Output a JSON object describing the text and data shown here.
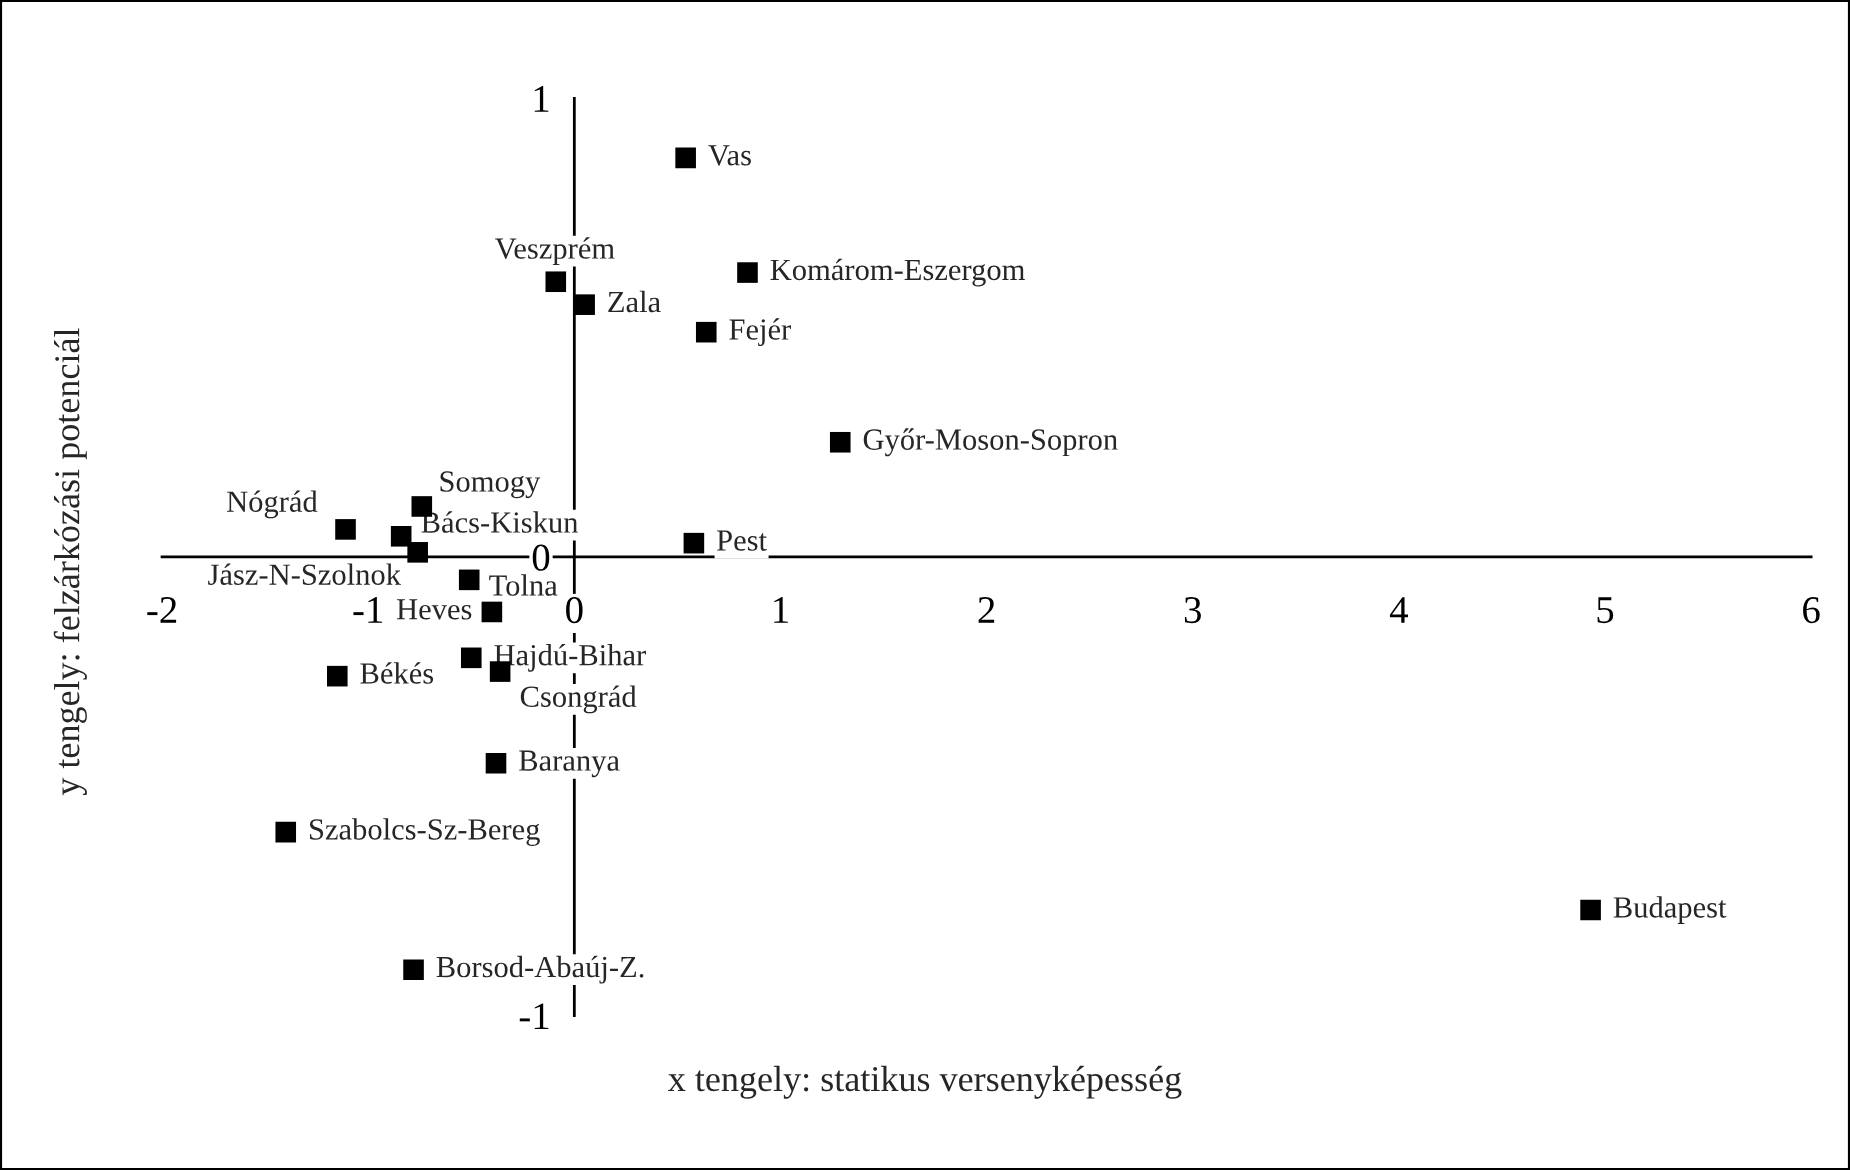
{
  "chart_data": {
    "type": "scatter",
    "xlabel": "x tengely: statikus versenyképesség",
    "ylabel": "y tengely: felzárkózási potenciál",
    "xlim": [
      -2,
      6
    ],
    "ylim": [
      -1,
      1
    ],
    "xticks": [
      -2,
      -1,
      0,
      1,
      2,
      3,
      4,
      5,
      6
    ],
    "yticks": [
      -1,
      0,
      1
    ],
    "grid": false,
    "marker": "square",
    "series": [
      {
        "color": "#000000",
        "x": [
          0.54,
          -0.09,
          0.05,
          0.84,
          0.64,
          1.29,
          -0.74,
          -1.11,
          -0.84,
          -0.76,
          0.58,
          -0.51,
          -0.4,
          -0.5,
          -0.36,
          -1.15,
          -0.38,
          -1.4,
          -0.78,
          4.93
        ],
        "values": [
          0.87,
          0.6,
          0.55,
          0.62,
          0.49,
          0.25,
          0.11,
          0.06,
          0.045,
          0.01,
          0.03,
          -0.05,
          -0.12,
          -0.22,
          -0.25,
          -0.26,
          -0.45,
          -0.6,
          -0.9,
          -0.77
        ]
      }
    ],
    "annotations": [
      {
        "text": "Vas",
        "x": 0.54,
        "y": 0.87
      },
      {
        "text": "Veszprém",
        "x": -0.09,
        "y": 0.6
      },
      {
        "text": "Zala",
        "x": 0.05,
        "y": 0.55
      },
      {
        "text": "Komárom-Eszergom",
        "x": 0.84,
        "y": 0.62
      },
      {
        "text": "Fejér",
        "x": 0.64,
        "y": 0.49
      },
      {
        "text": "Győr-Moson-Sopron",
        "x": 1.29,
        "y": 0.25
      },
      {
        "text": "Somogy",
        "x": -0.74,
        "y": 0.11
      },
      {
        "text": "Nógrád",
        "x": -1.11,
        "y": 0.06
      },
      {
        "text": "Bács-Kiskun",
        "x": -0.84,
        "y": 0.045
      },
      {
        "text": "Jász-N-Szolnok",
        "x": -0.76,
        "y": 0.01
      },
      {
        "text": "Pest",
        "x": 0.58,
        "y": 0.03
      },
      {
        "text": "Tolna",
        "x": -0.51,
        "y": -0.05
      },
      {
        "text": "Heves",
        "x": -0.4,
        "y": -0.12
      },
      {
        "text": "Hajdú-Bihar",
        "x": -0.5,
        "y": -0.22
      },
      {
        "text": "Csongrád",
        "x": -0.36,
        "y": -0.25
      },
      {
        "text": "Békés",
        "x": -1.15,
        "y": -0.26
      },
      {
        "text": "Baranya",
        "x": -0.38,
        "y": -0.45
      },
      {
        "text": "Szabolcs-Sz-Bereg",
        "x": -1.4,
        "y": -0.6
      },
      {
        "text": "Borsod-Abaúj-Z.",
        "x": -0.78,
        "y": -0.9
      },
      {
        "text": "Budapest",
        "x": 4.93,
        "y": -0.77
      }
    ]
  }
}
